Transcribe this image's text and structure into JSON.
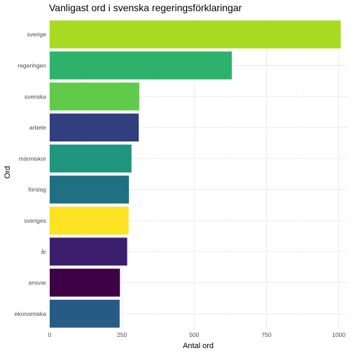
{
  "chart_data": {
    "type": "bar",
    "orientation": "horizontal",
    "title": "Vanligast ord i svenska regeringsförklaringar",
    "xlabel": "Antal ord",
    "ylabel": "Ord",
    "xlim": [
      0,
      1030
    ],
    "x_ticks": [
      0,
      250,
      500,
      750,
      1000
    ],
    "x_tick_labels": [
      "0",
      "250",
      "500",
      "750",
      "1000"
    ],
    "grid": true,
    "legend": "none",
    "categories": [
      "sverige",
      "regeringen",
      "svenska",
      "arbete",
      "människor",
      "förslag",
      "sveriges",
      "år",
      "ansvar",
      "ekonomiska"
    ],
    "values": [
      1007,
      630,
      310,
      308,
      283,
      274,
      273,
      268,
      243,
      242
    ],
    "colors": [
      "#a6db22",
      "#2eb16b",
      "#62ca4a",
      "#303f7e",
      "#1f947e",
      "#207083",
      "#fde324",
      "#3b1f6e",
      "#3f0145",
      "#275b86"
    ]
  }
}
